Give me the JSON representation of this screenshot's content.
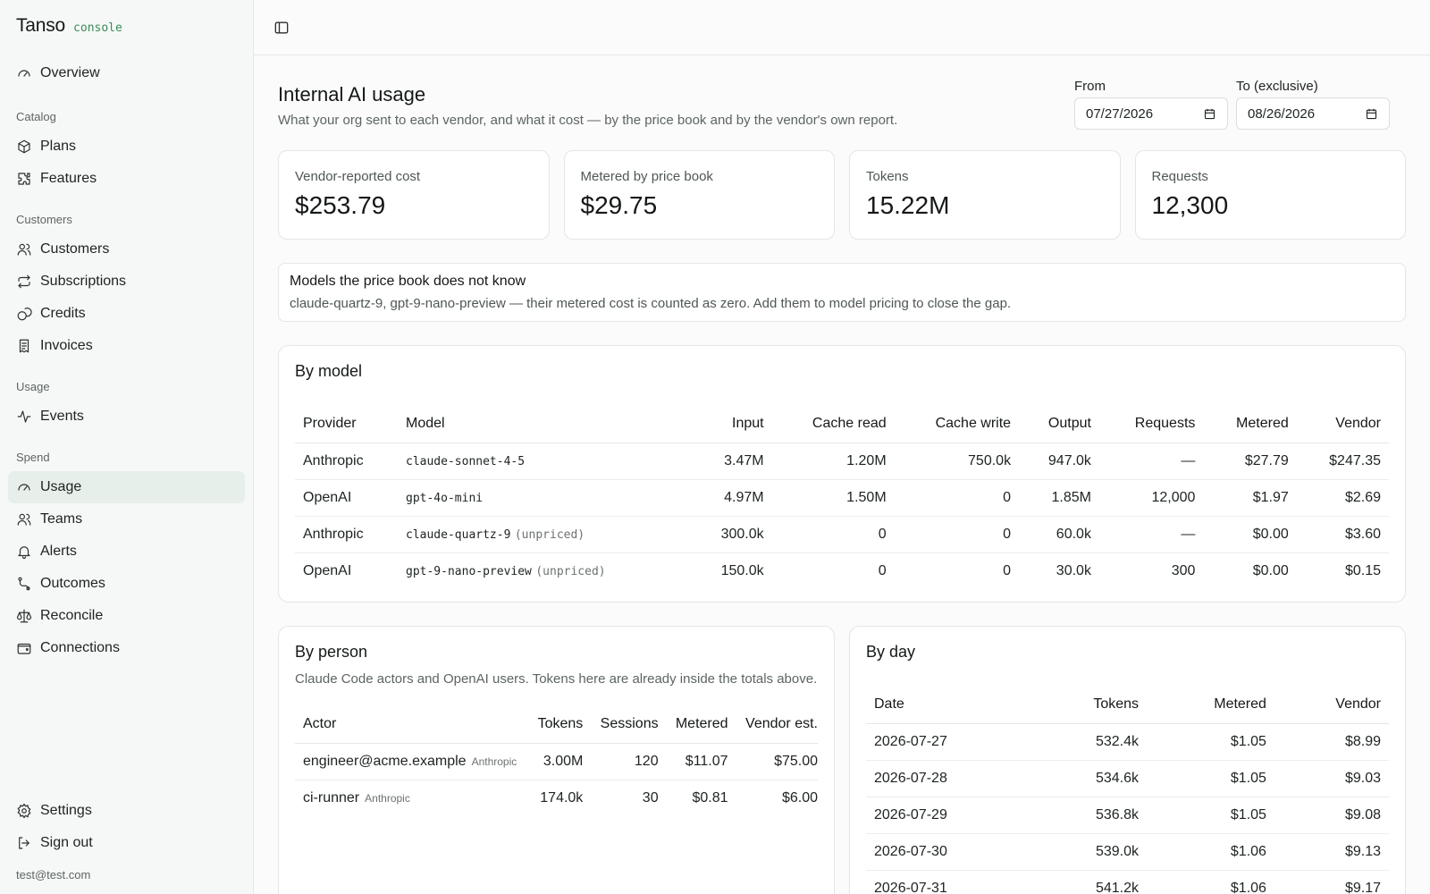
{
  "brand": {
    "name": "Tanso",
    "tag": "console"
  },
  "nav": {
    "overview": "Overview",
    "catalog_label": "Catalog",
    "plans": "Plans",
    "features": "Features",
    "customers_label": "Customers",
    "customers": "Customers",
    "subscriptions": "Subscriptions",
    "credits": "Credits",
    "invoices": "Invoices",
    "usage_label": "Usage",
    "events": "Events",
    "spend_label": "Spend",
    "usage": "Usage",
    "teams": "Teams",
    "alerts": "Alerts",
    "outcomes": "Outcomes",
    "reconcile": "Reconcile",
    "connections": "Connections",
    "settings": "Settings",
    "sign_out": "Sign out",
    "user_email": "test@test.com"
  },
  "page": {
    "title": "Internal AI usage",
    "subtitle": "What your org sent to each vendor, and what it cost — by the price book and by the vendor's own report.",
    "from_label": "From",
    "from_value": "07/27/2026",
    "to_label": "To (exclusive)",
    "to_value": "08/26/2026"
  },
  "stats": [
    {
      "label": "Vendor-reported cost",
      "value": "$253.79"
    },
    {
      "label": "Metered by price book",
      "value": "$29.75"
    },
    {
      "label": "Tokens",
      "value": "15.22M"
    },
    {
      "label": "Requests",
      "value": "12,300"
    }
  ],
  "warning": {
    "title": "Models the price book does not know",
    "body": "claude-quartz-9, gpt-9-nano-preview — their metered cost is counted as zero. Add them to model pricing to close the gap."
  },
  "by_model": {
    "title": "By model",
    "headers": [
      "Provider",
      "Model",
      "Input",
      "Cache read",
      "Cache write",
      "Output",
      "Requests",
      "Metered",
      "Vendor"
    ],
    "rows": [
      {
        "provider": "Anthropic",
        "model": "claude-sonnet-4-5",
        "flag": "",
        "input": "3.47M",
        "cache_read": "1.20M",
        "cache_write": "750.0k",
        "output": "947.0k",
        "requests": "—",
        "metered": "$27.79",
        "vendor": "$247.35"
      },
      {
        "provider": "OpenAI",
        "model": "gpt-4o-mini",
        "flag": "",
        "input": "4.97M",
        "cache_read": "1.50M",
        "cache_write": "0",
        "output": "1.85M",
        "requests": "12,000",
        "metered": "$1.97",
        "vendor": "$2.69"
      },
      {
        "provider": "Anthropic",
        "model": "claude-quartz-9",
        "flag": "(unpriced)",
        "input": "300.0k",
        "cache_read": "0",
        "cache_write": "0",
        "output": "60.0k",
        "requests": "—",
        "metered": "$0.00",
        "vendor": "$3.60"
      },
      {
        "provider": "OpenAI",
        "model": "gpt-9-nano-preview",
        "flag": "(unpriced)",
        "input": "150.0k",
        "cache_read": "0",
        "cache_write": "0",
        "output": "30.0k",
        "requests": "300",
        "metered": "$0.00",
        "vendor": "$0.15"
      }
    ]
  },
  "by_person": {
    "title": "By person",
    "subtitle": "Claude Code actors and OpenAI users. Tokens here are already inside the totals above.",
    "headers": [
      "Actor",
      "Tokens",
      "Sessions",
      "Metered",
      "Vendor est."
    ],
    "rows": [
      {
        "actor": "engineer@acme.example",
        "provider": "Anthropic",
        "tokens": "3.00M",
        "sessions": "120",
        "metered": "$11.07",
        "vendor": "$75.00"
      },
      {
        "actor": "ci-runner",
        "provider": "Anthropic",
        "tokens": "174.0k",
        "sessions": "30",
        "metered": "$0.81",
        "vendor": "$6.00"
      }
    ]
  },
  "by_day": {
    "title": "By day",
    "headers": [
      "Date",
      "Tokens",
      "Metered",
      "Vendor"
    ],
    "rows": [
      {
        "date": "2026-07-27",
        "tokens": "532.4k",
        "metered": "$1.05",
        "vendor": "$8.99"
      },
      {
        "date": "2026-07-28",
        "tokens": "534.6k",
        "metered": "$1.05",
        "vendor": "$9.03"
      },
      {
        "date": "2026-07-29",
        "tokens": "536.8k",
        "metered": "$1.05",
        "vendor": "$9.08"
      },
      {
        "date": "2026-07-30",
        "tokens": "539.0k",
        "metered": "$1.06",
        "vendor": "$9.13"
      },
      {
        "date": "2026-07-31",
        "tokens": "541.2k",
        "metered": "$1.06",
        "vendor": "$9.17"
      }
    ]
  }
}
